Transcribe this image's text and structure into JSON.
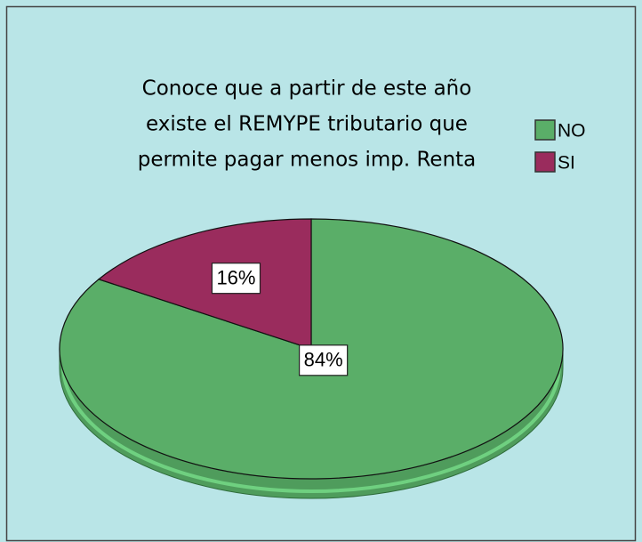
{
  "chart_data": {
    "type": "pie",
    "title": [
      "Conoce que a partir de este año",
      "existe el REMYPE tributario que",
      "permite pagar menos imp. Renta"
    ],
    "categories": [
      "NO",
      "SI"
    ],
    "values": [
      84,
      16
    ],
    "value_labels": [
      "84%",
      "16%"
    ],
    "colors": [
      "#5aae68",
      "#9a2c5d"
    ]
  }
}
